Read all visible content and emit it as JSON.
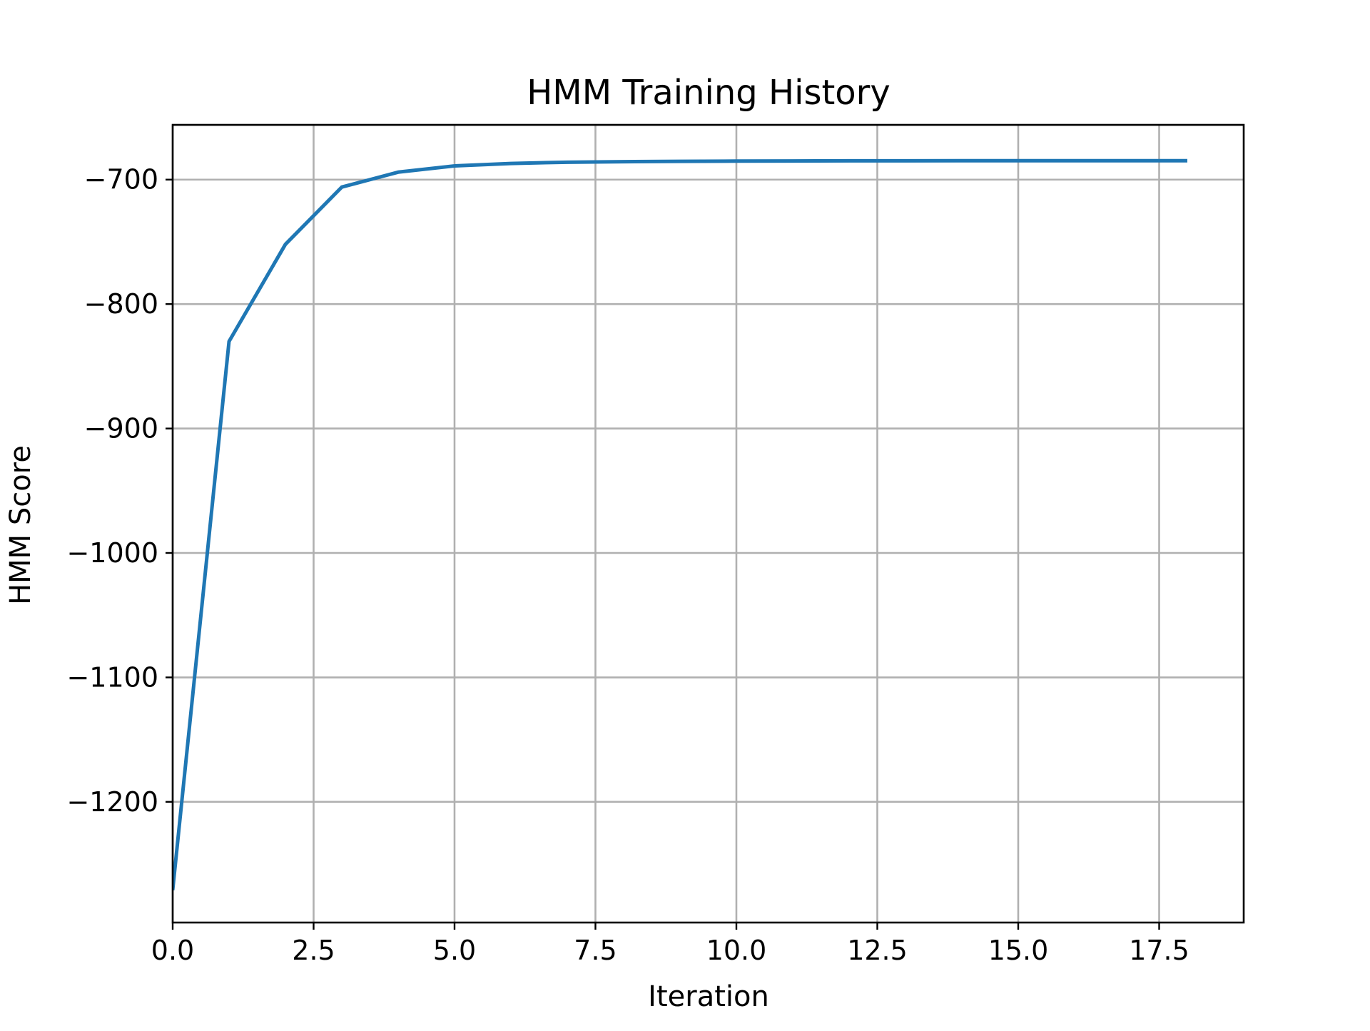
{
  "chart_data": {
    "type": "line",
    "title": "HMM Training History",
    "xlabel": "Iteration",
    "ylabel": "HMM Score",
    "xlim": [
      0,
      19
    ],
    "ylim": [
      -1297,
      -656
    ],
    "x_ticks": [
      0.0,
      2.5,
      5.0,
      7.5,
      10.0,
      12.5,
      15.0,
      17.5
    ],
    "x_tick_labels": [
      "0.0",
      "2.5",
      "5.0",
      "7.5",
      "10.0",
      "12.5",
      "15.0",
      "17.5"
    ],
    "y_ticks": [
      -1200,
      -1100,
      -1000,
      -900,
      -800,
      -700
    ],
    "y_tick_labels": [
      "−1200",
      "−1100",
      "−1000",
      "−900",
      "−800",
      "−700"
    ],
    "grid": true,
    "series": [
      {
        "color": "#1f77b4",
        "x": [
          0,
          1,
          2,
          3,
          4,
          5,
          6,
          7,
          8,
          9,
          10,
          11,
          12,
          13,
          14,
          15,
          16,
          17,
          18
        ],
        "y": [
          -1271,
          -830,
          -752,
          -706,
          -694,
          -689,
          -687,
          -686,
          -685.6,
          -685.3,
          -685.1,
          -685,
          -684.9,
          -684.85,
          -684.8,
          -684.8,
          -684.8,
          -684.8,
          -684.8
        ]
      }
    ]
  }
}
